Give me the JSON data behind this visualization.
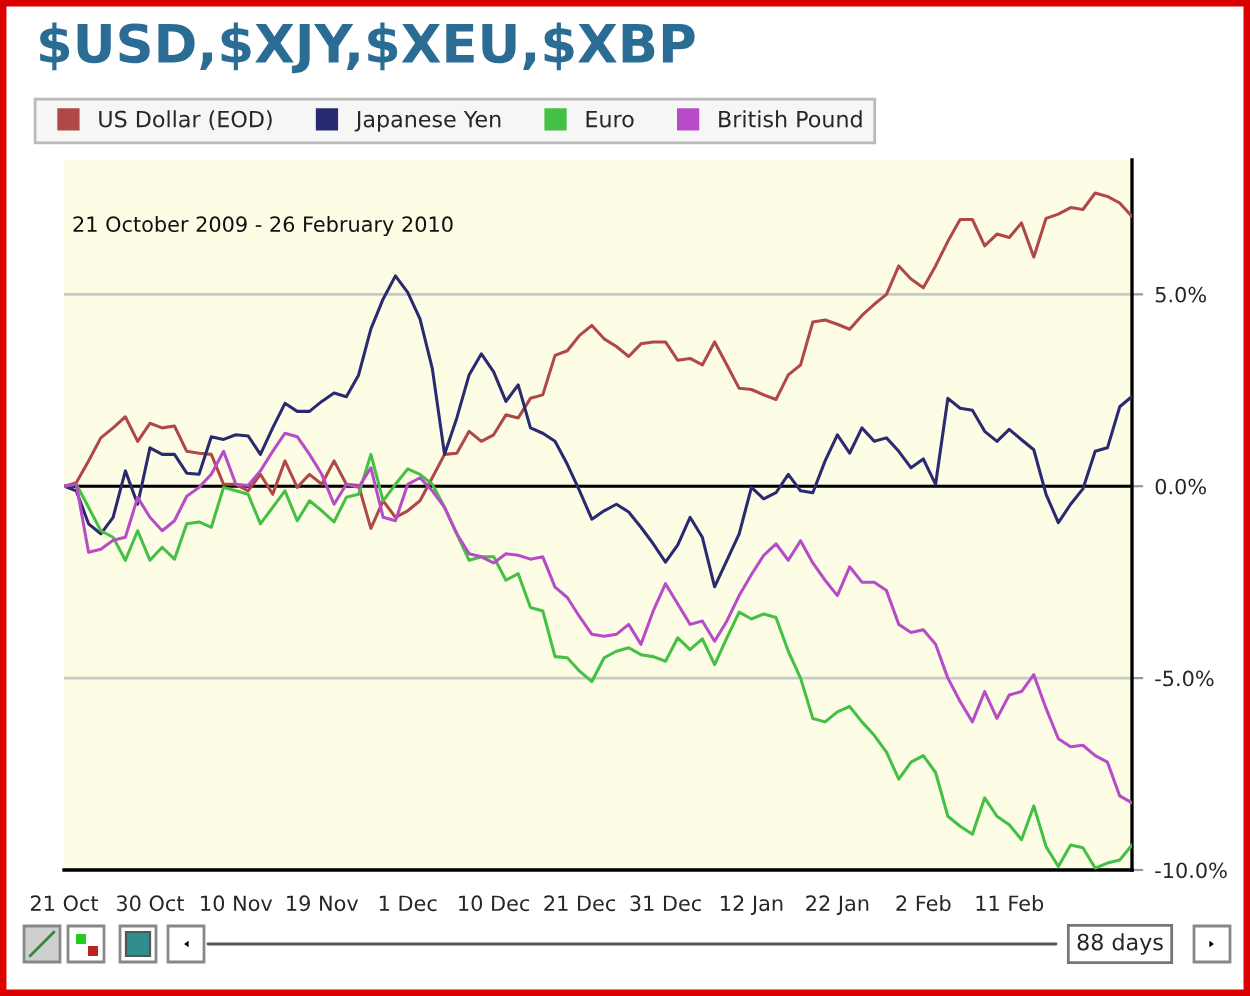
{
  "chart_data": {
    "type": "line",
    "title": "$USD,$XJY,$XEU,$XBP",
    "subtitle": "21 October 2009 - 26 February 2010",
    "categories": [
      "21 Oct",
      null,
      null,
      null,
      null,
      null,
      null,
      "30 Oct",
      null,
      null,
      null,
      null,
      null,
      null,
      "10 Nov",
      null,
      null,
      null,
      null,
      null,
      null,
      "19 Nov",
      null,
      null,
      null,
      null,
      null,
      null,
      "1 Dec",
      null,
      null,
      null,
      null,
      null,
      null,
      "10 Dec",
      null,
      null,
      null,
      null,
      null,
      null,
      "21 Dec",
      null,
      null,
      null,
      null,
      null,
      null,
      "31 Dec",
      null,
      null,
      null,
      null,
      null,
      null,
      "12 Jan",
      null,
      null,
      null,
      null,
      null,
      null,
      "22 Jan",
      null,
      null,
      null,
      null,
      null,
      null,
      "2 Feb",
      null,
      null,
      null,
      null,
      null,
      null,
      "11 Feb",
      null,
      null,
      null,
      null,
      null,
      null,
      null,
      null,
      null,
      null
    ],
    "series": [
      {
        "name": "US Dollar (EOD)",
        "color": "#b04848",
        "values": [
          0,
          0.09,
          0.66,
          1.26,
          1.52,
          1.81,
          1.17,
          1.64,
          1.52,
          1.57,
          0.91,
          0.86,
          0.83,
          0.05,
          0.05,
          -0.12,
          0.31,
          -0.21,
          0.66,
          -0.03,
          0.31,
          0.05,
          0.66,
          0.05,
          0.02,
          -1.1,
          -0.38,
          -0.81,
          -0.64,
          -0.38,
          0.22,
          0.83,
          0.86,
          1.43,
          1.17,
          1.34,
          1.86,
          1.78,
          2.29,
          2.38,
          3.41,
          3.53,
          3.93,
          4.19,
          3.84,
          3.64,
          3.38,
          3.71,
          3.76,
          3.76,
          3.28,
          3.33,
          3.16,
          3.76,
          3.16,
          2.55,
          2.52,
          2.38,
          2.26,
          2.9,
          3.16,
          4.28,
          4.33,
          4.22,
          4.09,
          4.45,
          4.74,
          5.0,
          5.74,
          5.4,
          5.17,
          5.74,
          6.38,
          6.95,
          6.95,
          6.26,
          6.57,
          6.48,
          6.86,
          5.97,
          6.98,
          7.09,
          7.26,
          7.21,
          7.64,
          7.55,
          7.38,
          7.03
        ]
      },
      {
        "name": "Japanese Yen",
        "color": "#2a2a70",
        "values": [
          0,
          -0.12,
          -0.98,
          -1.24,
          -0.81,
          0.4,
          -0.47,
          1.0,
          0.83,
          0.83,
          0.34,
          0.31,
          1.29,
          1.22,
          1.34,
          1.31,
          0.83,
          1.52,
          2.16,
          1.95,
          1.95,
          2.21,
          2.43,
          2.33,
          2.9,
          4.1,
          4.88,
          5.48,
          5.05,
          4.36,
          3.07,
          0.83,
          1.78,
          2.9,
          3.45,
          2.98,
          2.21,
          2.64,
          1.52,
          1.38,
          1.17,
          0.57,
          -0.12,
          -0.86,
          -0.64,
          -0.47,
          -0.67,
          -1.07,
          -1.5,
          -1.98,
          -1.53,
          -0.81,
          -1.33,
          -2.62,
          -1.93,
          -1.24,
          -0.03,
          -0.33,
          -0.17,
          0.31,
          -0.12,
          -0.17,
          0.66,
          1.34,
          0.86,
          1.52,
          1.17,
          1.26,
          0.91,
          0.48,
          0.71,
          0.05,
          2.29,
          2.03,
          1.98,
          1.43,
          1.17,
          1.48,
          1.21,
          0.95,
          -0.21,
          -0.95,
          -0.47,
          -0.07,
          0.91,
          1.0,
          2.07,
          2.34
        ]
      },
      {
        "name": "Euro",
        "color": "#44c044",
        "values": [
          0,
          0.05,
          -0.55,
          -1.16,
          -1.33,
          -1.93,
          -1.16,
          -1.93,
          -1.59,
          -1.9,
          -0.98,
          -0.93,
          -1.07,
          -0.03,
          -0.12,
          -0.21,
          -0.98,
          -0.55,
          -0.12,
          -0.9,
          -0.38,
          -0.64,
          -0.93,
          -0.29,
          -0.21,
          0.83,
          -0.38,
          0.05,
          0.45,
          0.31,
          0.05,
          -0.55,
          -1.24,
          -1.93,
          -1.84,
          -1.84,
          -2.45,
          -2.28,
          -3.16,
          -3.25,
          -4.44,
          -4.47,
          -4.82,
          -5.09,
          -4.47,
          -4.3,
          -4.21,
          -4.39,
          -4.44,
          -4.56,
          -3.95,
          -4.26,
          -3.98,
          -4.65,
          -3.95,
          -3.28,
          -3.46,
          -3.33,
          -3.42,
          -4.3,
          -5.0,
          -6.05,
          -6.14,
          -5.88,
          -5.74,
          -6.14,
          -6.49,
          -6.93,
          -7.63,
          -7.19,
          -7.02,
          -7.46,
          -8.6,
          -8.86,
          -9.07,
          -8.12,
          -8.6,
          -8.82,
          -9.21,
          -8.33,
          -9.39,
          -9.91,
          -9.35,
          -9.42,
          -9.95,
          -9.82,
          -9.74,
          -9.35
        ]
      },
      {
        "name": "British Pound",
        "color": "#b84cc8",
        "values": [
          0,
          0.05,
          -1.72,
          -1.64,
          -1.41,
          -1.33,
          -0.29,
          -0.81,
          -1.16,
          -0.9,
          -0.26,
          -0.03,
          0.31,
          0.91,
          0.05,
          0.02,
          0.4,
          0.91,
          1.38,
          1.29,
          0.83,
          0.31,
          -0.47,
          0.05,
          -0.03,
          0.48,
          -0.81,
          -0.9,
          0.05,
          0.22,
          -0.12,
          -0.55,
          -1.24,
          -1.76,
          -1.84,
          -2.0,
          -1.76,
          -1.8,
          -1.9,
          -1.84,
          -2.63,
          -2.9,
          -3.4,
          -3.86,
          -3.91,
          -3.86,
          -3.6,
          -4.12,
          -3.25,
          -2.54,
          -3.07,
          -3.6,
          -3.51,
          -4.04,
          -3.51,
          -2.85,
          -2.3,
          -1.8,
          -1.5,
          -1.93,
          -1.42,
          -2.0,
          -2.45,
          -2.85,
          -2.1,
          -2.5,
          -2.5,
          -2.72,
          -3.6,
          -3.81,
          -3.74,
          -4.12,
          -5.0,
          -5.61,
          -6.14,
          -5.35,
          -6.05,
          -5.44,
          -5.35,
          -4.91,
          -5.79,
          -6.58,
          -6.79,
          -6.75,
          -7.02,
          -7.19,
          -8.07,
          -8.25
        ]
      }
    ],
    "ylim": [
      -10,
      8.5
    ],
    "yticks": [
      {
        "value": -10,
        "label": "-10.0%"
      },
      {
        "value": -5,
        "label": "-5.0%"
      },
      {
        "value": 0,
        "label": "0.0%"
      },
      {
        "value": 5,
        "label": "5.0%"
      }
    ],
    "grid": "y",
    "legend": "top left",
    "line_style": "solid",
    "marker": "none",
    "ref_lines": [
      {
        "axis": "y",
        "value": 0,
        "color": "#000000"
      }
    ],
    "annotations": [
      "88 days"
    ]
  }
}
